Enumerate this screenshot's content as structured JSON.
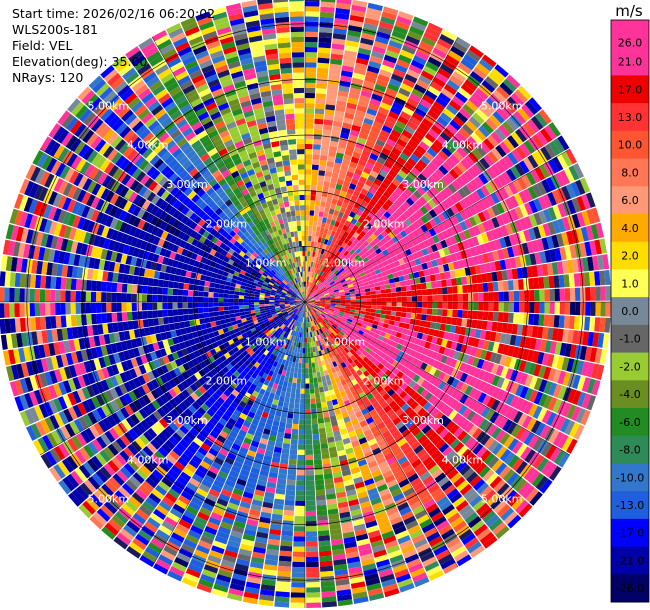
{
  "header": {
    "start_time": "Start time: 2026/02/16 06:20:02",
    "instrument": "WLS200s-181",
    "field": "Field: VEL",
    "elevation": "Elevation(deg): 35.00",
    "nrays": "NRays: 120"
  },
  "colorbar": {
    "unit": "m/s",
    "ticks": [
      "26.0",
      "21.0",
      "17.0",
      "13.0",
      "10.0",
      "8.0",
      "6.0",
      "4.0",
      "2.0",
      "1.0",
      "0.0",
      "-1.0",
      "-2.0",
      "-4.0",
      "-6.0",
      "-8.0",
      "-10.0",
      "-13.0",
      "-17.0",
      "-21.0",
      "-26.0",
      "-30.0"
    ],
    "colors": [
      "#ff3399",
      "#ff3399",
      "#ee0000",
      "#ff3333",
      "#ff5533",
      "#ff7755",
      "#ff9977",
      "#ffaa00",
      "#ffdd00",
      "#ffff55",
      "#778899",
      "#666666",
      "#99cc33",
      "#6b8e23",
      "#228b22",
      "#2e8b57",
      "#3377cc",
      "#1f5fdd",
      "#0000ff",
      "#0000aa",
      "#000066",
      "#1a1a5e"
    ]
  },
  "chart_data": {
    "type": "ppi",
    "field": "VEL",
    "units": "m/s",
    "nrays": 120,
    "elevation_deg": 35.0,
    "max_range_km": 5.5,
    "range_rings_km": [
      1,
      2,
      3,
      4,
      5
    ],
    "ring_labels": [
      "1.00km",
      "2.00km",
      "3.00km",
      "4.00km",
      "5.00km"
    ],
    "vmin": -30.0,
    "vmax": 30.0,
    "dominant_velocity_by_azimuth_deg": [
      {
        "az": 0,
        "vel": 2.0
      },
      {
        "az": 30,
        "vel": 13.0
      },
      {
        "az": 60,
        "vel": 26.0
      },
      {
        "az": 90,
        "vel": 13.0
      },
      {
        "az": 120,
        "vel": 21.0
      },
      {
        "az": 150,
        "vel": 10.0
      },
      {
        "az": 180,
        "vel": -10.0
      },
      {
        "az": 210,
        "vel": -17.0
      },
      {
        "az": 240,
        "vel": -26.0
      },
      {
        "az": 270,
        "vel": -21.0
      },
      {
        "az": 300,
        "vel": -26.0
      },
      {
        "az": 330,
        "vel": -6.0
      }
    ]
  }
}
